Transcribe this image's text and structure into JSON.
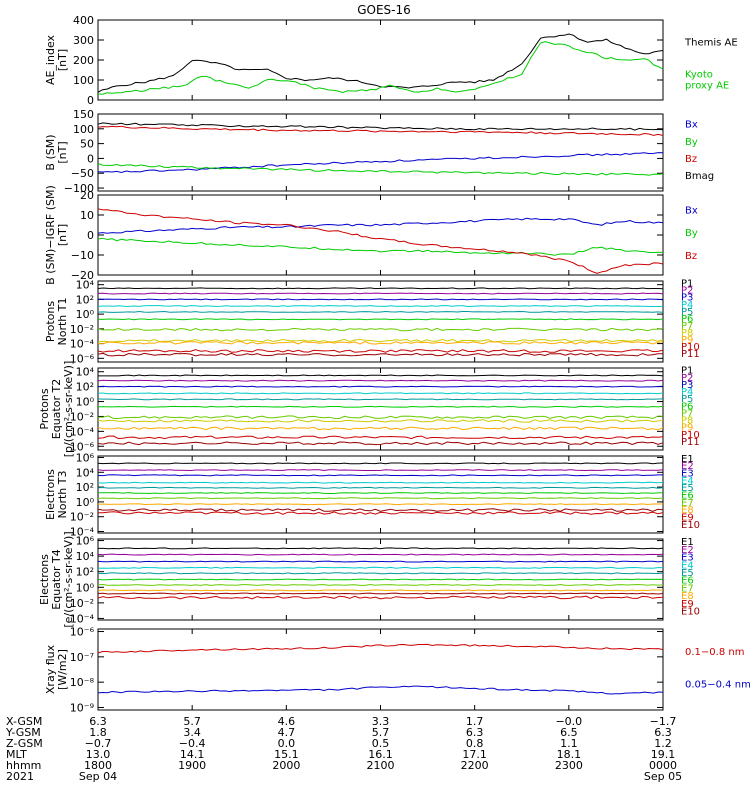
{
  "title": "GOES-16",
  "colors": {
    "black": "#000000",
    "blue": "#0000cc",
    "green": "#00cc00",
    "red": "#cc0000",
    "navy": "#000080",
    "cyan": "#00cccc",
    "teal": "#009999",
    "lime": "#66cc00",
    "yellow": "#cccc00",
    "orange": "#ffaa00",
    "darkred": "#990000",
    "purple": "#990099"
  },
  "x_ticks": [
    "1800",
    "1900",
    "2000",
    "2100",
    "2200",
    "2300",
    "0000"
  ],
  "chart_data": [
    {
      "type": "line",
      "panel": "ae",
      "ylabel": [
        "AE_index",
        "[nT]"
      ],
      "ylim": [
        0,
        400
      ],
      "yticks": [
        {
          "v": 0,
          "t": "0"
        },
        {
          "v": 100,
          "t": "100"
        },
        {
          "v": 200,
          "t": "200"
        },
        {
          "v": 300,
          "t": "300"
        },
        {
          "v": 400,
          "t": "400"
        }
      ],
      "series": [
        {
          "name": "Themis AE",
          "color": "#000000",
          "legend": [
            "Themis AE"
          ],
          "x": [
            0,
            0.2,
            0.5,
            0.8,
            1.0,
            1.3,
            1.5,
            1.8,
            2.0,
            2.2,
            2.5,
            2.8,
            3.0,
            3.3,
            3.5,
            3.8,
            4.0,
            4.2,
            4.5,
            4.7,
            5.0,
            5.2,
            5.4,
            5.6,
            5.8,
            6.0
          ],
          "y": [
            40,
            70,
            90,
            120,
            200,
            180,
            150,
            150,
            110,
            100,
            110,
            90,
            70,
            60,
            70,
            90,
            90,
            100,
            180,
            310,
            330,
            290,
            300,
            260,
            230,
            245
          ]
        },
        {
          "name": "Kyoto proxy AE",
          "color": "#00cc00",
          "legend": [
            "Kyoto",
            "proxy AE"
          ],
          "x": [
            0,
            0.3,
            0.6,
            0.9,
            1.1,
            1.4,
            1.6,
            1.8,
            2.0,
            2.3,
            2.6,
            2.9,
            3.1,
            3.4,
            3.6,
            3.8,
            4.0,
            4.3,
            4.5,
            4.7,
            4.9,
            5.2,
            5.4,
            5.6,
            5.8,
            6.0
          ],
          "y": [
            30,
            40,
            55,
            70,
            120,
            80,
            60,
            100,
            100,
            60,
            40,
            50,
            70,
            35,
            60,
            40,
            50,
            100,
            130,
            290,
            280,
            240,
            210,
            200,
            210,
            150
          ]
        }
      ]
    },
    {
      "type": "line",
      "panel": "b_sm",
      "ylabel": [
        "B (SM)",
        "[nT]"
      ],
      "ylim": [
        -110,
        150
      ],
      "yticks": [
        {
          "v": -100,
          "t": "−100"
        },
        {
          "v": -50,
          "t": "−50"
        },
        {
          "v": 0,
          "t": "0"
        },
        {
          "v": 50,
          "t": "50"
        },
        {
          "v": 100,
          "t": "100"
        },
        {
          "v": 150,
          "t": "150"
        }
      ],
      "series": [
        {
          "name": "Bx",
          "color": "#0000cc",
          "legend": [
            "Bx"
          ],
          "x": [
            0,
            1,
            2,
            3,
            4,
            5,
            6
          ],
          "y": [
            -48,
            -38,
            -22,
            -10,
            0,
            10,
            18
          ]
        },
        {
          "name": "By",
          "color": "#00cc00",
          "legend": [
            "By"
          ],
          "x": [
            0,
            1,
            2,
            3,
            4,
            5,
            6
          ],
          "y": [
            -20,
            -30,
            -38,
            -44,
            -48,
            -52,
            -55
          ]
        },
        {
          "name": "Bz",
          "color": "#cc0000",
          "legend": [
            "Bz"
          ],
          "x": [
            0,
            1,
            2,
            3,
            4,
            5,
            6
          ],
          "y": [
            108,
            100,
            95,
            92,
            90,
            85,
            80
          ]
        },
        {
          "name": "Bmag",
          "color": "#000000",
          "legend": [
            "Bmag"
          ],
          "x": [
            0,
            1,
            2,
            3,
            4,
            5,
            6
          ],
          "y": [
            118,
            112,
            108,
            103,
            100,
            100,
            98
          ]
        }
      ]
    },
    {
      "type": "line",
      "panel": "b_igrf",
      "ylabel": [
        "B (SM)−IGRF (SM)",
        "[nT]"
      ],
      "ylim": [
        -20,
        20
      ],
      "yticks": [
        {
          "v": -20,
          "t": "−20"
        },
        {
          "v": -10,
          "t": "−10"
        },
        {
          "v": 0,
          "t": "0"
        },
        {
          "v": 10,
          "t": "10"
        },
        {
          "v": 20,
          "t": "20"
        }
      ],
      "series": [
        {
          "name": "Bx",
          "color": "#0000cc",
          "legend": [
            "Bx"
          ],
          "x": [
            0,
            0.5,
            1,
            1.5,
            2,
            2.5,
            3,
            3.5,
            4,
            4.5,
            5,
            5.3,
            5.6,
            6
          ],
          "y": [
            1,
            2,
            3,
            4,
            4,
            5,
            5,
            6,
            7,
            8,
            8,
            5,
            7,
            6
          ]
        },
        {
          "name": "By",
          "color": "#00cc00",
          "legend": [
            "By"
          ],
          "x": [
            0,
            0.5,
            1,
            1.5,
            2,
            2.5,
            3,
            3.5,
            4,
            4.5,
            5,
            5.3,
            5.6,
            6
          ],
          "y": [
            -2,
            -3,
            -4,
            -5,
            -6,
            -7,
            -8,
            -8,
            -9,
            -9,
            -10,
            -6,
            -8,
            -9
          ]
        },
        {
          "name": "Bz",
          "color": "#cc0000",
          "legend": [
            "Bz"
          ],
          "x": [
            0,
            0.5,
            1,
            1.5,
            2,
            2.5,
            3,
            3.5,
            4,
            4.5,
            5,
            5.3,
            5.6,
            6
          ],
          "y": [
            13,
            10,
            8,
            6,
            5,
            2,
            -2,
            -5,
            -7,
            -9,
            -13,
            -19,
            -15,
            -14
          ]
        }
      ]
    },
    {
      "type": "line",
      "panel": "protons_t1",
      "scale": "log",
      "ylabel": [
        "Protons",
        "North T1"
      ],
      "ylim": [
        -6.5,
        4.5
      ],
      "yticks": [
        {
          "v": 4,
          "t": "10⁴"
        },
        {
          "v": 2,
          "t": "10²"
        },
        {
          "v": 0,
          "t": "10⁰"
        },
        {
          "v": -2,
          "t": "10⁻²"
        },
        {
          "v": -4,
          "t": "10⁻⁴"
        },
        {
          "v": -6,
          "t": "10⁻⁶"
        }
      ],
      "series": [
        {
          "name": "P1",
          "color": "#000000",
          "legend": [
            "P1"
          ],
          "level": 3.5
        },
        {
          "name": "P2",
          "color": "#990099",
          "legend": [
            "P2"
          ],
          "level": 2.8
        },
        {
          "name": "P3",
          "color": "#0000cc",
          "legend": [
            "P3"
          ],
          "level": 2.0
        },
        {
          "name": "P4",
          "color": "#00cccc",
          "legend": [
            "P4"
          ],
          "level": 1.1
        },
        {
          "name": "P5",
          "color": "#009999",
          "legend": [
            "P5"
          ],
          "level": 0.3
        },
        {
          "name": "P6",
          "color": "#00cc00",
          "legend": [
            "P6"
          ],
          "level": -0.7
        },
        {
          "name": "P7",
          "color": "#66cc00",
          "legend": [
            "P7"
          ],
          "level": -2.1
        },
        {
          "name": "P8",
          "color": "#cccc00",
          "legend": [
            "P8"
          ],
          "level": -3.6
        },
        {
          "name": "P9",
          "color": "#ffaa00",
          "legend": [
            "P9"
          ],
          "level": -3.9
        },
        {
          "name": "P10",
          "color": "#cc0000",
          "legend": [
            "P10"
          ],
          "level": -5.0
        },
        {
          "name": "P11",
          "color": "#990000",
          "legend": [
            "P11"
          ],
          "level": -5.5
        }
      ]
    },
    {
      "type": "line",
      "panel": "protons_t2",
      "scale": "log",
      "ylabel": [
        "Protons",
        "Equator T2",
        "[p/(cm²-s-sr-keV)]"
      ],
      "ylim": [
        -6.5,
        4.5
      ],
      "yticks": [
        {
          "v": 4,
          "t": "10⁴"
        },
        {
          "v": 2,
          "t": "10²"
        },
        {
          "v": 0,
          "t": "10⁰"
        },
        {
          "v": -2,
          "t": "10⁻²"
        },
        {
          "v": -4,
          "t": "10⁻⁴"
        },
        {
          "v": -6,
          "t": "10⁻⁶"
        }
      ],
      "series": [
        {
          "name": "P1",
          "color": "#000000",
          "legend": [
            "P1"
          ],
          "level": 3.5
        },
        {
          "name": "P2",
          "color": "#990099",
          "legend": [
            "P2"
          ],
          "level": 2.8
        },
        {
          "name": "P3",
          "color": "#0000cc",
          "legend": [
            "P3"
          ],
          "level": 2.0
        },
        {
          "name": "P4",
          "color": "#00cccc",
          "legend": [
            "P4"
          ],
          "level": 1.1
        },
        {
          "name": "P5",
          "color": "#009999",
          "legend": [
            "P5"
          ],
          "level": 0.3
        },
        {
          "name": "P6",
          "color": "#00cc00",
          "legend": [
            "P6"
          ],
          "level": -0.7
        },
        {
          "name": "P7",
          "color": "#66cc00",
          "legend": [
            "P7"
          ],
          "level": -2.1
        },
        {
          "name": "P8",
          "color": "#cccc00",
          "legend": [
            "P8"
          ],
          "level": -2.6
        },
        {
          "name": "P9",
          "color": "#ffaa00",
          "legend": [
            "P9"
          ],
          "level": -3.6
        },
        {
          "name": "P10",
          "color": "#cc0000",
          "legend": [
            "P10"
          ],
          "level": -4.8
        },
        {
          "name": "P11",
          "color": "#990000",
          "legend": [
            "P11"
          ],
          "level": -5.6
        }
      ]
    },
    {
      "type": "line",
      "panel": "electrons_t3",
      "scale": "log",
      "ylabel": [
        "Electrons",
        "North T3"
      ],
      "ylim": [
        -4.2,
        6.2
      ],
      "yticks": [
        {
          "v": 6,
          "t": "10⁶"
        },
        {
          "v": 4,
          "t": "10⁴"
        },
        {
          "v": 2,
          "t": "10²"
        },
        {
          "v": 0,
          "t": "10⁰"
        },
        {
          "v": -2,
          "t": "10⁻²"
        },
        {
          "v": -4,
          "t": "10⁻⁴"
        }
      ],
      "series": [
        {
          "name": "E1",
          "color": "#000000",
          "legend": [
            "E1"
          ],
          "level": 5.2
        },
        {
          "name": "E2",
          "color": "#990099",
          "legend": [
            "E2"
          ],
          "level": 4.3
        },
        {
          "name": "E3",
          "color": "#0000cc",
          "legend": [
            "E3"
          ],
          "level": 3.6
        },
        {
          "name": "E4",
          "color": "#00cccc",
          "legend": [
            "E4"
          ],
          "level": 2.6
        },
        {
          "name": "E5",
          "color": "#009999",
          "legend": [
            "E5"
          ],
          "level": 1.9
        },
        {
          "name": "E6",
          "color": "#00cc00",
          "legend": [
            "E6"
          ],
          "level": 1.2
        },
        {
          "name": "E7",
          "color": "#66cc00",
          "legend": [
            "E7"
          ],
          "level": 0.5
        },
        {
          "name": "E8",
          "color": "#ffaa00",
          "legend": [
            "E8"
          ],
          "level": -0.3
        },
        {
          "name": "E9",
          "color": "#cc0000",
          "legend": [
            "E9"
          ],
          "level": -1.5
        },
        {
          "name": "E10",
          "color": "#990000",
          "legend": [
            "E10"
          ],
          "level": -1.1
        }
      ]
    },
    {
      "type": "line",
      "panel": "electrons_t4",
      "scale": "log",
      "ylabel": [
        "Electrons",
        "Equator T4",
        "[e/(cm²-s-sr-keV)]"
      ],
      "ylim": [
        -4.2,
        6.2
      ],
      "yticks": [
        {
          "v": 6,
          "t": "10⁶"
        },
        {
          "v": 4,
          "t": "10⁴"
        },
        {
          "v": 2,
          "t": "10²"
        },
        {
          "v": 0,
          "t": "10⁰"
        },
        {
          "v": -2,
          "t": "10⁻²"
        },
        {
          "v": -4,
          "t": "10⁻⁴"
        }
      ],
      "series": [
        {
          "name": "E1",
          "color": "#000000",
          "legend": [
            "E1"
          ],
          "level": 5.0
        },
        {
          "name": "E2",
          "color": "#990099",
          "legend": [
            "E2"
          ],
          "level": 4.2
        },
        {
          "name": "E3",
          "color": "#0000cc",
          "legend": [
            "E3"
          ],
          "level": 3.3
        },
        {
          "name": "E4",
          "color": "#00cccc",
          "legend": [
            "E4"
          ],
          "level": 2.5
        },
        {
          "name": "E5",
          "color": "#009999",
          "legend": [
            "E5"
          ],
          "level": 1.8
        },
        {
          "name": "E6",
          "color": "#00cc00",
          "legend": [
            "E6"
          ],
          "level": 1.0
        },
        {
          "name": "E7",
          "color": "#66cc00",
          "legend": [
            "E7"
          ],
          "level": 0.3
        },
        {
          "name": "E8",
          "color": "#ffaa00",
          "legend": [
            "E8"
          ],
          "level": -0.4
        },
        {
          "name": "E9",
          "color": "#cc0000",
          "legend": [
            "E9"
          ],
          "level": -1.3
        },
        {
          "name": "E10",
          "color": "#990000",
          "legend": [
            "E10"
          ],
          "level": -0.8
        }
      ]
    },
    {
      "type": "line",
      "panel": "xray",
      "scale": "log",
      "ylabel": [
        "Xray flux",
        "[W/m2]"
      ],
      "ylim": [
        -9.1,
        -5.9
      ],
      "yticks": [
        {
          "v": -6,
          "t": "10⁻⁶"
        },
        {
          "v": -7,
          "t": "10⁻⁷"
        },
        {
          "v": -8,
          "t": "10⁻⁸"
        },
        {
          "v": -9,
          "t": "10⁻⁹"
        }
      ],
      "series": [
        {
          "name": "0.1−0.8 nm",
          "color": "#cc0000",
          "legend": [
            "0.1−0.8 nm"
          ],
          "x": [
            0,
            0.5,
            1,
            1.5,
            2,
            2.5,
            3,
            3.5,
            4,
            4.5,
            5,
            5.5,
            6
          ],
          "y": [
            -6.82,
            -6.78,
            -6.72,
            -6.7,
            -6.68,
            -6.64,
            -6.55,
            -6.52,
            -6.55,
            -6.58,
            -6.62,
            -6.68,
            -6.7
          ]
        },
        {
          "name": "0.05−0.4 nm",
          "color": "#0000cc",
          "legend": [
            "0.05−0.4 nm"
          ],
          "x": [
            0,
            0.5,
            1,
            1.5,
            2,
            2.5,
            3,
            3.5,
            4,
            4.5,
            5,
            5.5,
            6
          ],
          "y": [
            -8.4,
            -8.38,
            -8.36,
            -8.34,
            -8.32,
            -8.3,
            -8.2,
            -8.18,
            -8.25,
            -8.3,
            -8.35,
            -8.45,
            -8.4
          ]
        }
      ]
    }
  ],
  "ephemeris": {
    "rows": [
      {
        "label": "X-GSM",
        "values": [
          "6.3",
          "5.7",
          "4.6",
          "3.3",
          "1.7",
          "−0.0",
          "−1.7"
        ]
      },
      {
        "label": "Y-GSM",
        "values": [
          "1.8",
          "3.4",
          "4.7",
          "5.7",
          "6.3",
          "6.5",
          "6.3"
        ]
      },
      {
        "label": "Z-GSM",
        "values": [
          "−0.7",
          "−0.4",
          "0.0",
          "0.5",
          "0.8",
          "1.1",
          "1.2"
        ]
      },
      {
        "label": "MLT",
        "values": [
          "13.0",
          "14.1",
          "15.1",
          "16.1",
          "17.1",
          "18.1",
          "19.1"
        ]
      },
      {
        "label": "hhmm",
        "values": [
          "1800",
          "1900",
          "2000",
          "2100",
          "2200",
          "2300",
          "0000"
        ]
      }
    ],
    "year": "2021",
    "date_start": "Sep 04",
    "date_end": "Sep 05"
  }
}
